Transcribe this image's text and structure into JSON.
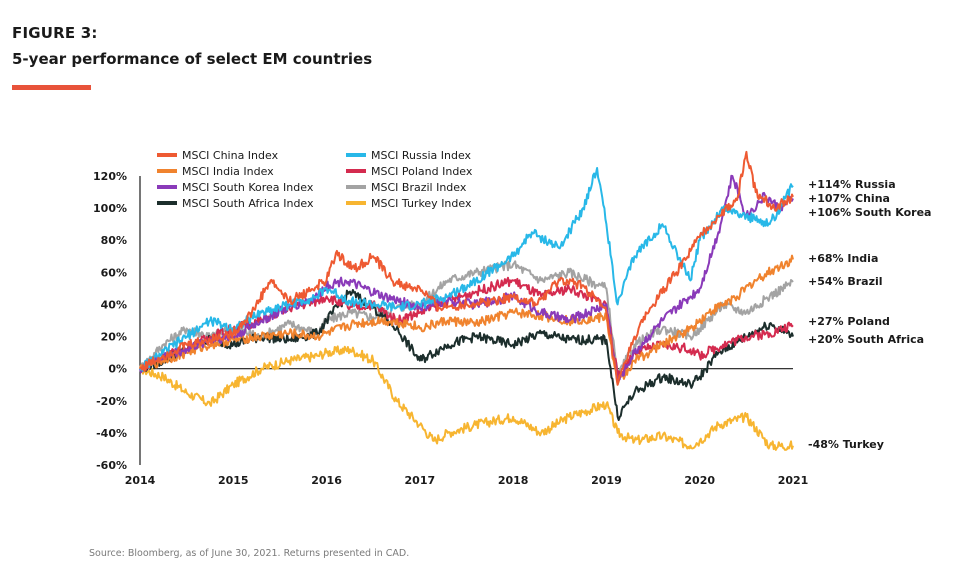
{
  "figure_label": "FIGURE 3:",
  "figure_title": "5-year performance of select EM countries",
  "source": "Source: Bloomberg, as of June 30, 2021. Returns presented in CAD.",
  "accent_color": "#e8533a",
  "chart_data": {
    "type": "line",
    "title": "5-year performance of select EM countries",
    "xlabel": "",
    "ylabel": "",
    "x_ticks": [
      "2014",
      "2015",
      "2016",
      "2017",
      "2018",
      "2019",
      "2020",
      "2021"
    ],
    "xlim": [
      2014,
      2021
    ],
    "ylim": [
      -60,
      130
    ],
    "y_ticks": [
      -60,
      -40,
      -20,
      0,
      20,
      40,
      60,
      80,
      100,
      120
    ],
    "y_tick_labels": [
      "-60%",
      "-40%",
      "-20%",
      "0%",
      "20%",
      "40%",
      "60%",
      "80%",
      "100%",
      "120%"
    ],
    "grid": false,
    "zero_line": true,
    "legend_position": "top-left",
    "series": [
      {
        "name": "MSCI China Index",
        "color": "#ee5a32",
        "end_label": "+107% China",
        "points": [
          [
            2014,
            0
          ],
          [
            2014.25,
            8
          ],
          [
            2014.5,
            15
          ],
          [
            2014.75,
            18
          ],
          [
            2015,
            22
          ],
          [
            2015.2,
            35
          ],
          [
            2015.4,
            55
          ],
          [
            2015.6,
            42
          ],
          [
            2015.8,
            48
          ],
          [
            2016,
            55
          ],
          [
            2016.1,
            72
          ],
          [
            2016.3,
            62
          ],
          [
            2016.5,
            70
          ],
          [
            2016.7,
            55
          ],
          [
            2016.9,
            50
          ],
          [
            2017,
            50
          ],
          [
            2017.2,
            38
          ],
          [
            2017.5,
            40
          ],
          [
            2017.75,
            42
          ],
          [
            2018,
            45
          ],
          [
            2018.25,
            40
          ],
          [
            2018.5,
            55
          ],
          [
            2018.75,
            52
          ],
          [
            2019,
            35
          ],
          [
            2019.12,
            -10
          ],
          [
            2019.3,
            20
          ],
          [
            2019.5,
            40
          ],
          [
            2019.75,
            60
          ],
          [
            2020,
            82
          ],
          [
            2020.2,
            95
          ],
          [
            2020.4,
            105
          ],
          [
            2020.5,
            135
          ],
          [
            2020.6,
            110
          ],
          [
            2020.8,
            100
          ],
          [
            2021,
            107
          ]
        ]
      },
      {
        "name": "MSCI India Index",
        "color": "#f0832e",
        "end_label": "+68% India",
        "points": [
          [
            2014,
            0
          ],
          [
            2014.25,
            5
          ],
          [
            2014.5,
            10
          ],
          [
            2014.75,
            15
          ],
          [
            2015,
            18
          ],
          [
            2015.3,
            20
          ],
          [
            2015.6,
            22
          ],
          [
            2015.9,
            20
          ],
          [
            2016,
            22
          ],
          [
            2016.3,
            28
          ],
          [
            2016.6,
            30
          ],
          [
            2016.9,
            28
          ],
          [
            2017,
            25
          ],
          [
            2017.3,
            30
          ],
          [
            2017.6,
            28
          ],
          [
            2018,
            35
          ],
          [
            2018.3,
            33
          ],
          [
            2018.6,
            30
          ],
          [
            2019,
            32
          ],
          [
            2019.12,
            -10
          ],
          [
            2019.3,
            5
          ],
          [
            2019.6,
            15
          ],
          [
            2019.9,
            25
          ],
          [
            2020.1,
            35
          ],
          [
            2020.4,
            45
          ],
          [
            2020.6,
            55
          ],
          [
            2020.8,
            62
          ],
          [
            2021,
            68
          ]
        ]
      },
      {
        "name": "MSCI South Korea Index",
        "color": "#8a3ab9",
        "end_label": "+106% South Korea",
        "points": [
          [
            2014,
            0
          ],
          [
            2014.25,
            8
          ],
          [
            2014.5,
            12
          ],
          [
            2014.75,
            18
          ],
          [
            2015,
            20
          ],
          [
            2015.3,
            30
          ],
          [
            2015.6,
            38
          ],
          [
            2015.9,
            45
          ],
          [
            2016,
            52
          ],
          [
            2016.2,
            55
          ],
          [
            2016.4,
            50
          ],
          [
            2016.6,
            45
          ],
          [
            2016.9,
            40
          ],
          [
            2017,
            38
          ],
          [
            2017.3,
            42
          ],
          [
            2017.6,
            40
          ],
          [
            2018,
            45
          ],
          [
            2018.3,
            35
          ],
          [
            2018.6,
            30
          ],
          [
            2019,
            40
          ],
          [
            2019.12,
            -8
          ],
          [
            2019.3,
            10
          ],
          [
            2019.6,
            30
          ],
          [
            2019.9,
            45
          ],
          [
            2020,
            50
          ],
          [
            2020.2,
            85
          ],
          [
            2020.35,
            120
          ],
          [
            2020.5,
            95
          ],
          [
            2020.7,
            108
          ],
          [
            2020.85,
            100
          ],
          [
            2021,
            106
          ]
        ]
      },
      {
        "name": "MSCI South Africa Index",
        "color": "#1c2e2c",
        "end_label": "+20% South Africa",
        "points": [
          [
            2014,
            0
          ],
          [
            2014.25,
            5
          ],
          [
            2014.5,
            12
          ],
          [
            2014.75,
            18
          ],
          [
            2015,
            15
          ],
          [
            2015.3,
            20
          ],
          [
            2015.6,
            18
          ],
          [
            2015.9,
            22
          ],
          [
            2016,
            30
          ],
          [
            2016.25,
            48
          ],
          [
            2016.5,
            38
          ],
          [
            2016.75,
            25
          ],
          [
            2017,
            5
          ],
          [
            2017.3,
            15
          ],
          [
            2017.6,
            20
          ],
          [
            2018,
            15
          ],
          [
            2018.3,
            22
          ],
          [
            2018.6,
            18
          ],
          [
            2019,
            18
          ],
          [
            2019.12,
            -30
          ],
          [
            2019.3,
            -15
          ],
          [
            2019.6,
            -5
          ],
          [
            2019.9,
            -10
          ],
          [
            2020,
            -5
          ],
          [
            2020.2,
            10
          ],
          [
            2020.5,
            20
          ],
          [
            2020.75,
            28
          ],
          [
            2021,
            20
          ]
        ]
      },
      {
        "name": "MSCI Russia Index",
        "color": "#28b8e8",
        "end_label": "+114% Russia",
        "points": [
          [
            2014,
            0
          ],
          [
            2014.25,
            10
          ],
          [
            2014.5,
            20
          ],
          [
            2014.75,
            30
          ],
          [
            2015,
            25
          ],
          [
            2015.3,
            35
          ],
          [
            2015.6,
            40
          ],
          [
            2015.9,
            45
          ],
          [
            2016,
            50
          ],
          [
            2016.25,
            42
          ],
          [
            2016.5,
            40
          ],
          [
            2016.75,
            38
          ],
          [
            2017,
            40
          ],
          [
            2017.3,
            45
          ],
          [
            2017.6,
            55
          ],
          [
            2018,
            70
          ],
          [
            2018.2,
            85
          ],
          [
            2018.5,
            75
          ],
          [
            2018.75,
            100
          ],
          [
            2018.9,
            125
          ],
          [
            2019,
            90
          ],
          [
            2019.12,
            40
          ],
          [
            2019.3,
            70
          ],
          [
            2019.6,
            90
          ],
          [
            2019.9,
            55
          ],
          [
            2020,
            80
          ],
          [
            2020.25,
            100
          ],
          [
            2020.5,
            95
          ],
          [
            2020.75,
            90
          ],
          [
            2021,
            114
          ]
        ]
      },
      {
        "name": "MSCI Poland Index",
        "color": "#d42b4f",
        "end_label": "+27% Poland",
        "points": [
          [
            2014,
            0
          ],
          [
            2014.25,
            8
          ],
          [
            2014.5,
            12
          ],
          [
            2014.75,
            20
          ],
          [
            2015,
            25
          ],
          [
            2015.3,
            30
          ],
          [
            2015.6,
            38
          ],
          [
            2015.9,
            42
          ],
          [
            2016,
            45
          ],
          [
            2016.25,
            38
          ],
          [
            2016.5,
            40
          ],
          [
            2016.75,
            30
          ],
          [
            2017,
            35
          ],
          [
            2017.3,
            42
          ],
          [
            2017.6,
            48
          ],
          [
            2018,
            55
          ],
          [
            2018.3,
            45
          ],
          [
            2018.6,
            50
          ],
          [
            2019,
            40
          ],
          [
            2019.12,
            -5
          ],
          [
            2019.3,
            10
          ],
          [
            2019.6,
            15
          ],
          [
            2019.9,
            12
          ],
          [
            2020,
            8
          ],
          [
            2020.25,
            15
          ],
          [
            2020.5,
            20
          ],
          [
            2020.75,
            22
          ],
          [
            2021,
            27
          ]
        ]
      },
      {
        "name": "MSCI Brazil Index",
        "color": "#a3a3a3",
        "end_label": "+54% Brazil",
        "points": [
          [
            2014,
            0
          ],
          [
            2014.25,
            15
          ],
          [
            2014.5,
            25
          ],
          [
            2014.75,
            20
          ],
          [
            2015,
            25
          ],
          [
            2015.3,
            20
          ],
          [
            2015.6,
            28
          ],
          [
            2015.9,
            22
          ],
          [
            2016,
            30
          ],
          [
            2016.25,
            35
          ],
          [
            2016.5,
            32
          ],
          [
            2016.75,
            38
          ],
          [
            2017,
            40
          ],
          [
            2017.3,
            55
          ],
          [
            2017.6,
            60
          ],
          [
            2018,
            65
          ],
          [
            2018.3,
            55
          ],
          [
            2018.6,
            60
          ],
          [
            2019,
            50
          ],
          [
            2019.12,
            -5
          ],
          [
            2019.3,
            15
          ],
          [
            2019.6,
            25
          ],
          [
            2019.9,
            20
          ],
          [
            2020,
            25
          ],
          [
            2020.25,
            40
          ],
          [
            2020.5,
            35
          ],
          [
            2020.75,
            45
          ],
          [
            2021,
            54
          ]
        ]
      },
      {
        "name": "MSCI Turkey Index",
        "color": "#f7b531",
        "end_label": "-48% Turkey",
        "points": [
          [
            2014,
            0
          ],
          [
            2014.25,
            -5
          ],
          [
            2014.5,
            -15
          ],
          [
            2014.75,
            -22
          ],
          [
            2015,
            -10
          ],
          [
            2015.3,
            0
          ],
          [
            2015.6,
            5
          ],
          [
            2015.9,
            8
          ],
          [
            2016,
            10
          ],
          [
            2016.25,
            12
          ],
          [
            2016.5,
            5
          ],
          [
            2016.75,
            -20
          ],
          [
            2017,
            -35
          ],
          [
            2017.15,
            -45
          ],
          [
            2017.3,
            -40
          ],
          [
            2017.6,
            -35
          ],
          [
            2018,
            -30
          ],
          [
            2018.3,
            -40
          ],
          [
            2018.6,
            -30
          ],
          [
            2019,
            -22
          ],
          [
            2019.12,
            -40
          ],
          [
            2019.3,
            -45
          ],
          [
            2019.6,
            -42
          ],
          [
            2019.9,
            -48
          ],
          [
            2020,
            -45
          ],
          [
            2020.2,
            -35
          ],
          [
            2020.5,
            -30
          ],
          [
            2020.75,
            -48
          ],
          [
            2021,
            -48
          ]
        ]
      }
    ]
  }
}
